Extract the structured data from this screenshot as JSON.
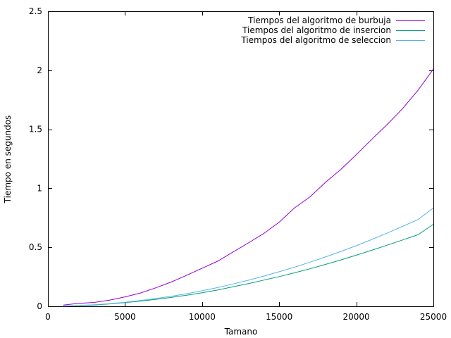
{
  "chart_data": {
    "type": "line",
    "xlabel": "Tamano",
    "ylabel": "Tiempo en segundos",
    "xlim": [
      0,
      25000
    ],
    "ylim": [
      0,
      2.5
    ],
    "xticks": [
      0,
      5000,
      10000,
      15000,
      20000,
      25000
    ],
    "yticks": [
      0,
      0.5,
      1,
      1.5,
      2,
      2.5
    ],
    "xtick_labels": [
      "0",
      "5000",
      "10000",
      "15000",
      "20000",
      "25000"
    ],
    "ytick_labels": [
      "0",
      "0.5",
      "1",
      "1.5",
      "2",
      "2.5"
    ],
    "grid": false,
    "legend_position": "top-right",
    "x": [
      1000,
      2000,
      3000,
      4000,
      5000,
      6000,
      7000,
      8000,
      9000,
      10000,
      11000,
      12000,
      13000,
      14000,
      15000,
      16000,
      17000,
      18000,
      19000,
      20000,
      21000,
      22000,
      23000,
      24000,
      25000
    ],
    "series": [
      {
        "name": "Tiempos del algoritmo de burbuja",
        "color": "#9400d3",
        "values": [
          0.01,
          0.025,
          0.033,
          0.052,
          0.08,
          0.113,
          0.157,
          0.206,
          0.263,
          0.323,
          0.382,
          0.46,
          0.537,
          0.617,
          0.713,
          0.835,
          0.928,
          1.05,
          1.16,
          1.285,
          1.415,
          1.54,
          1.675,
          1.83,
          2.01
        ]
      },
      {
        "name": "Tiempos del algoritmo de insercion",
        "color": "#009e73",
        "values": [
          0.002,
          0.006,
          0.011,
          0.02,
          0.031,
          0.044,
          0.059,
          0.075,
          0.094,
          0.115,
          0.138,
          0.165,
          0.192,
          0.222,
          0.252,
          0.284,
          0.318,
          0.355,
          0.393,
          0.433,
          0.475,
          0.518,
          0.562,
          0.606,
          0.695
        ]
      },
      {
        "name": "Tiempos del algoritmo de seleccion",
        "color": "#56b4e9",
        "values": [
          0.003,
          0.007,
          0.013,
          0.022,
          0.034,
          0.049,
          0.066,
          0.085,
          0.107,
          0.132,
          0.159,
          0.189,
          0.221,
          0.256,
          0.293,
          0.332,
          0.374,
          0.418,
          0.465,
          0.514,
          0.566,
          0.62,
          0.677,
          0.735,
          0.833
        ]
      }
    ]
  }
}
